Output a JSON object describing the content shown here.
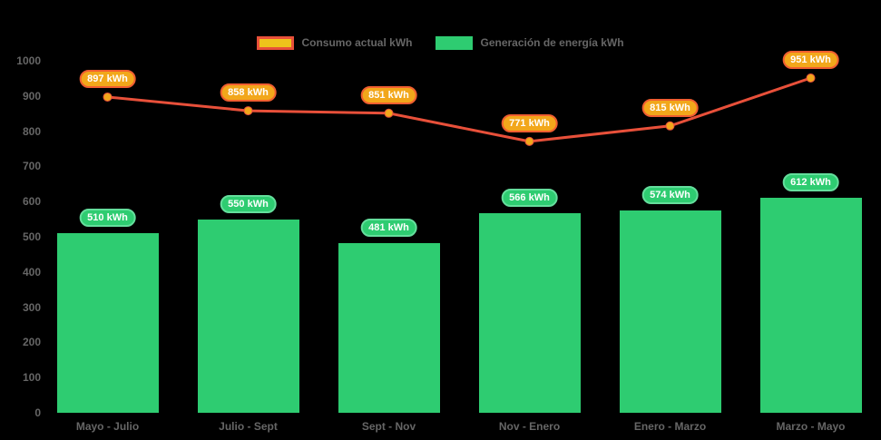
{
  "chart_data": {
    "type": "bar",
    "subtype": "bar-and-line-combo",
    "background_color": "#000000",
    "text_color": "#666666",
    "unit": "kWh",
    "legend_position": "top",
    "grid": false,
    "categories": [
      "Mayo - Julio",
      "Julio - Sept",
      "Sept - Nov",
      "Nov - Enero",
      "Enero - Marzo",
      "Marzo - Mayo"
    ],
    "y_ticks": [
      "0",
      "100",
      "200",
      "300",
      "400",
      "500",
      "600",
      "700",
      "800",
      "900",
      "1000"
    ],
    "ylim": [
      0,
      1000
    ],
    "series": [
      {
        "name": "Consumo actual kWh",
        "type": "line",
        "values": [
          897,
          858,
          851,
          771,
          815,
          951
        ],
        "point_labels": [
          "897 kWh",
          "858 kWh",
          "851 kWh",
          "771 kWh",
          "815 kWh",
          "951 kWh"
        ],
        "line_color": "#e8503a",
        "point_color": "#f2a71b",
        "label_bg_color": "#f2a71b",
        "label_border_color": "#f05e30",
        "label_text_color": "#ffffff",
        "legend_swatch_fill": "#eec31b",
        "legend_swatch_border": "#e8503a"
      },
      {
        "name": "Generación de energía kWh",
        "type": "bar",
        "values": [
          510,
          550,
          481,
          566,
          574,
          612
        ],
        "point_labels": [
          "510 kWh",
          "550 kWh",
          "481 kWh",
          "566 kWh",
          "574 kWh",
          "612 kWh"
        ],
        "bar_color": "#2ecc71",
        "label_bg_color": "#2ecc71",
        "label_border_color": "#64de9c",
        "label_text_color": "#ffffff"
      }
    ]
  }
}
